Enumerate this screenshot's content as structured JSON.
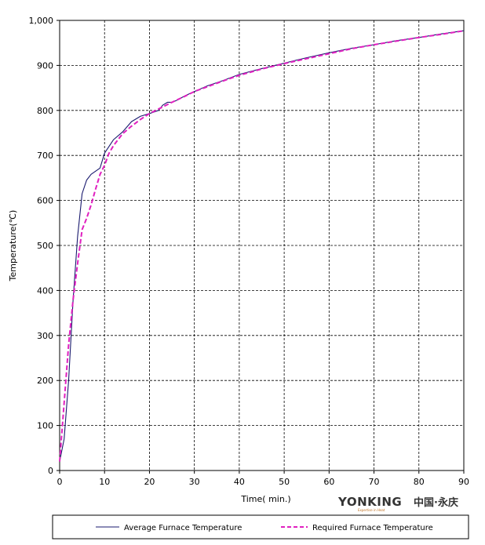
{
  "chart_data": {
    "type": "line",
    "xlabel": "Time( min.)",
    "ylabel": "Temperature(℃)",
    "xlim": [
      0,
      90
    ],
    "ylim": [
      0,
      1000
    ],
    "xticks": [
      "0",
      "10",
      "20",
      "30",
      "40",
      "50",
      "60",
      "70",
      "80",
      "90"
    ],
    "yticks": [
      "0",
      "100",
      "200",
      "300",
      "400",
      "500",
      "600",
      "700",
      "800",
      "900",
      "1,000"
    ],
    "grid": true,
    "legend_position": "bottom",
    "series": [
      {
        "name": "Average Furnace Temperature",
        "color": "#1a1a6e",
        "style": "solid",
        "points": [
          [
            0,
            20
          ],
          [
            1,
            70
          ],
          [
            2,
            200
          ],
          [
            3,
            380
          ],
          [
            4,
            520
          ],
          [
            5,
            615
          ],
          [
            6,
            645
          ],
          [
            7,
            658
          ],
          [
            8,
            665
          ],
          [
            9,
            672
          ],
          [
            10,
            705
          ],
          [
            11,
            720
          ],
          [
            12,
            735
          ],
          [
            14,
            752
          ],
          [
            16,
            775
          ],
          [
            18,
            787
          ],
          [
            20,
            793
          ],
          [
            22,
            800
          ],
          [
            23,
            812
          ],
          [
            24,
            818
          ],
          [
            25,
            818
          ],
          [
            26,
            822
          ],
          [
            28,
            833
          ],
          [
            30,
            842
          ],
          [
            33,
            855
          ],
          [
            36,
            865
          ],
          [
            40,
            880
          ],
          [
            45,
            893
          ],
          [
            50,
            905
          ],
          [
            55,
            917
          ],
          [
            60,
            928
          ],
          [
            65,
            938
          ],
          [
            70,
            946
          ],
          [
            75,
            955
          ],
          [
            80,
            962
          ],
          [
            85,
            970
          ],
          [
            90,
            977
          ]
        ]
      },
      {
        "name": "Required Furnace Temperature",
        "color": "#e020c0",
        "style": "dashed",
        "points": [
          [
            0,
            20
          ],
          [
            1,
            150
          ],
          [
            2,
            280
          ],
          [
            3,
            380
          ],
          [
            4,
            460
          ],
          [
            5,
            535
          ],
          [
            6,
            560
          ],
          [
            7,
            590
          ],
          [
            8,
            625
          ],
          [
            9,
            658
          ],
          [
            10,
            678
          ],
          [
            11,
            705
          ],
          [
            12,
            722
          ],
          [
            14,
            748
          ],
          [
            16,
            765
          ],
          [
            18,
            780
          ],
          [
            20,
            793
          ],
          [
            22,
            803
          ],
          [
            25,
            818
          ],
          [
            28,
            832
          ],
          [
            30,
            842
          ],
          [
            33,
            853
          ],
          [
            36,
            864
          ],
          [
            40,
            878
          ],
          [
            45,
            892
          ],
          [
            50,
            904
          ],
          [
            55,
            915
          ],
          [
            60,
            926
          ],
          [
            65,
            937
          ],
          [
            70,
            946
          ],
          [
            75,
            954
          ],
          [
            80,
            962
          ],
          [
            85,
            969
          ],
          [
            90,
            977
          ]
        ]
      }
    ]
  },
  "brand": {
    "name": "YONKING",
    "tagline": "Expertise in Heat",
    "chinese": "中国·永庆"
  }
}
